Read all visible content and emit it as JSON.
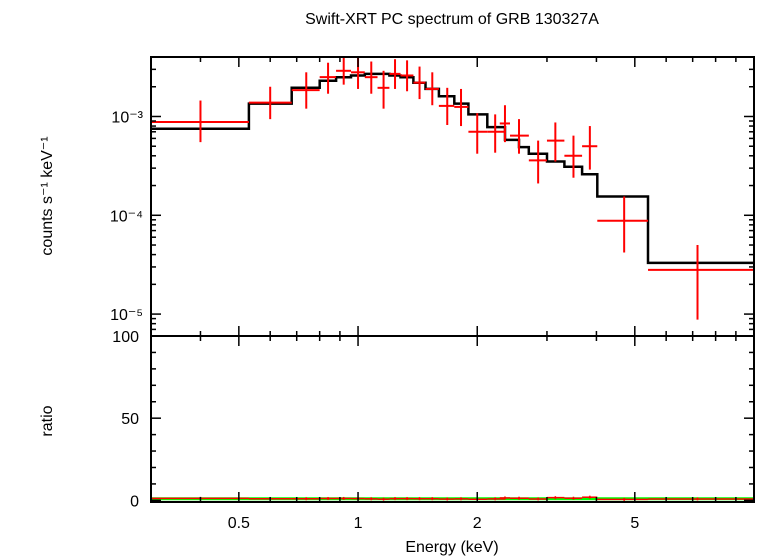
{
  "chart_data": [
    {
      "type": "scatter",
      "title": "Swift-XRT PC spectrum of GRB 130327A",
      "xlabel": "Energy (keV)",
      "ylabel": "counts s⁻¹ keV⁻¹",
      "xscale": "log",
      "yscale": "log",
      "xlim": [
        0.3,
        10
      ],
      "ylim": [
        6e-06,
        0.004
      ],
      "y_tick_labels": [
        {
          "value": 0.001,
          "label": "10⁻³"
        },
        {
          "value": 0.0001,
          "label": "10⁻⁴"
        },
        {
          "value": 1e-05,
          "label": "10⁻⁵"
        }
      ],
      "series": [
        {
          "role": "data",
          "color": "#ff0000",
          "points": [
            {
              "x": 0.4,
              "xlo": 0.3,
              "xhi": 0.53,
              "y": 0.00088,
              "ylo": 0.00055,
              "yhi": 0.00145
            },
            {
              "x": 0.6,
              "xlo": 0.53,
              "xhi": 0.68,
              "y": 0.00138,
              "ylo": 0.00094,
              "yhi": 0.002
            },
            {
              "x": 0.74,
              "xlo": 0.68,
              "xhi": 0.8,
              "y": 0.00185,
              "ylo": 0.0012,
              "yhi": 0.0028
            },
            {
              "x": 0.84,
              "xlo": 0.8,
              "xhi": 0.88,
              "y": 0.0025,
              "ylo": 0.0017,
              "yhi": 0.0035
            },
            {
              "x": 0.92,
              "xlo": 0.88,
              "xhi": 0.96,
              "y": 0.0029,
              "ylo": 0.0021,
              "yhi": 0.004
            },
            {
              "x": 1.0,
              "xlo": 0.96,
              "xhi": 1.04,
              "y": 0.0028,
              "ylo": 0.0019,
              "yhi": 0.004
            },
            {
              "x": 1.08,
              "xlo": 1.04,
              "xhi": 1.12,
              "y": 0.0025,
              "ylo": 0.0017,
              "yhi": 0.0036
            },
            {
              "x": 1.16,
              "xlo": 1.12,
              "xhi": 1.2,
              "y": 0.00195,
              "ylo": 0.0012,
              "yhi": 0.0029
            },
            {
              "x": 1.24,
              "xlo": 1.2,
              "xhi": 1.28,
              "y": 0.0027,
              "ylo": 0.0019,
              "yhi": 0.0038
            },
            {
              "x": 1.33,
              "xlo": 1.28,
              "xhi": 1.38,
              "y": 0.0026,
              "ylo": 0.0018,
              "yhi": 0.0037
            },
            {
              "x": 1.43,
              "xlo": 1.38,
              "xhi": 1.48,
              "y": 0.0022,
              "ylo": 0.0015,
              "yhi": 0.0032
            },
            {
              "x": 1.54,
              "xlo": 1.48,
              "xhi": 1.6,
              "y": 0.0019,
              "ylo": 0.0013,
              "yhi": 0.0028
            },
            {
              "x": 1.68,
              "xlo": 1.6,
              "xhi": 1.75,
              "y": 0.00128,
              "ylo": 0.00082,
              "yhi": 0.00195
            },
            {
              "x": 1.82,
              "xlo": 1.75,
              "xhi": 1.9,
              "y": 0.00125,
              "ylo": 0.0008,
              "yhi": 0.0019
            },
            {
              "x": 2.0,
              "xlo": 1.9,
              "xhi": 2.12,
              "y": 0.0007,
              "ylo": 0.00042,
              "yhi": 0.00108
            },
            {
              "x": 2.22,
              "xlo": 2.12,
              "xhi": 2.35,
              "y": 0.0007,
              "ylo": 0.00043,
              "yhi": 0.00105
            },
            {
              "x": 2.35,
              "xlo": 2.28,
              "xhi": 2.42,
              "y": 0.00085,
              "ylo": 0.00055,
              "yhi": 0.0013
            },
            {
              "x": 2.55,
              "xlo": 2.42,
              "xhi": 2.7,
              "y": 0.00064,
              "ylo": 0.00042,
              "yhi": 0.00094
            },
            {
              "x": 2.85,
              "xlo": 2.7,
              "xhi": 3.0,
              "y": 0.00036,
              "ylo": 0.00021,
              "yhi": 0.00057
            },
            {
              "x": 3.15,
              "xlo": 3.0,
              "xhi": 3.32,
              "y": 0.00057,
              "ylo": 0.00035,
              "yhi": 0.00087
            },
            {
              "x": 3.5,
              "xlo": 3.32,
              "xhi": 3.68,
              "y": 0.0004,
              "ylo": 0.00024,
              "yhi": 0.00064
            },
            {
              "x": 3.85,
              "xlo": 3.68,
              "xhi": 4.02,
              "y": 0.0005,
              "ylo": 0.00029,
              "yhi": 0.0008
            },
            {
              "x": 4.7,
              "xlo": 4.02,
              "xhi": 5.4,
              "y": 8.8e-05,
              "ylo": 4.2e-05,
              "yhi": 0.000155
            },
            {
              "x": 7.2,
              "xlo": 5.4,
              "xhi": 10.0,
              "y": 2.8e-05,
              "ylo": 8.8e-06,
              "yhi": 5e-05
            }
          ]
        },
        {
          "role": "model",
          "color": "#000000",
          "bins": [
            {
              "xlo": 0.3,
              "xhi": 0.53,
              "y": 0.00075
            },
            {
              "xlo": 0.53,
              "xhi": 0.68,
              "y": 0.00135
            },
            {
              "xlo": 0.68,
              "xhi": 0.8,
              "y": 0.00195
            },
            {
              "xlo": 0.8,
              "xhi": 0.88,
              "y": 0.0023
            },
            {
              "xlo": 0.88,
              "xhi": 0.96,
              "y": 0.0025
            },
            {
              "xlo": 0.96,
              "xhi": 1.04,
              "y": 0.0026
            },
            {
              "xlo": 1.04,
              "xhi": 1.12,
              "y": 0.0027
            },
            {
              "xlo": 1.12,
              "xhi": 1.2,
              "y": 0.0027
            },
            {
              "xlo": 1.2,
              "xhi": 1.28,
              "y": 0.0026
            },
            {
              "xlo": 1.28,
              "xhi": 1.38,
              "y": 0.0025
            },
            {
              "xlo": 1.38,
              "xhi": 1.48,
              "y": 0.0022
            },
            {
              "xlo": 1.48,
              "xhi": 1.6,
              "y": 0.0019
            },
            {
              "xlo": 1.6,
              "xhi": 1.75,
              "y": 0.0016
            },
            {
              "xlo": 1.75,
              "xhi": 1.9,
              "y": 0.00135
            },
            {
              "xlo": 1.9,
              "xhi": 2.12,
              "y": 0.00105
            },
            {
              "xlo": 2.12,
              "xhi": 2.35,
              "y": 0.00078
            },
            {
              "xlo": 2.35,
              "xhi": 2.55,
              "y": 0.00058
            },
            {
              "xlo": 2.55,
              "xhi": 2.7,
              "y": 0.00049
            },
            {
              "xlo": 2.7,
              "xhi": 3.0,
              "y": 0.00042
            },
            {
              "xlo": 3.0,
              "xhi": 3.32,
              "y": 0.00035
            },
            {
              "xlo": 3.32,
              "xhi": 3.68,
              "y": 0.00031
            },
            {
              "xlo": 3.68,
              "xhi": 4.02,
              "y": 0.00026
            },
            {
              "xlo": 4.02,
              "xhi": 5.4,
              "y": 0.000155
            },
            {
              "xlo": 5.4,
              "xhi": 10.0,
              "y": 3.3e-05
            }
          ]
        }
      ]
    },
    {
      "type": "scatter",
      "xlabel": "Energy (keV)",
      "ylabel": "ratio",
      "xscale": "log",
      "xlim": [
        0.3,
        10
      ],
      "ylim": [
        -1,
        100
      ],
      "x_ticks": [
        0.5,
        1,
        2,
        5
      ],
      "x_tick_labels": [
        "0.5",
        "1",
        "2",
        "5"
      ],
      "y_ticks": [
        0,
        50,
        100
      ],
      "y_tick_labels": [
        "0",
        "50",
        "100"
      ],
      "reference_line": {
        "y": 1,
        "color": "#00ff00"
      },
      "series": [
        {
          "role": "ratio",
          "color": "#ff0000",
          "points": [
            {
              "x": 0.4,
              "y": 1.2
            },
            {
              "x": 0.6,
              "y": 1.0
            },
            {
              "x": 0.74,
              "y": 0.95
            },
            {
              "x": 0.84,
              "y": 1.1
            },
            {
              "x": 0.92,
              "y": 1.15
            },
            {
              "x": 1.0,
              "y": 1.08
            },
            {
              "x": 1.08,
              "y": 0.93
            },
            {
              "x": 1.16,
              "y": 0.72
            },
            {
              "x": 1.24,
              "y": 1.04
            },
            {
              "x": 1.33,
              "y": 1.04
            },
            {
              "x": 1.43,
              "y": 1.0
            },
            {
              "x": 1.54,
              "y": 1.0
            },
            {
              "x": 1.68,
              "y": 0.8
            },
            {
              "x": 1.82,
              "y": 0.93
            },
            {
              "x": 2.0,
              "y": 0.67
            },
            {
              "x": 2.22,
              "y": 0.9
            },
            {
              "x": 2.35,
              "y": 1.46
            },
            {
              "x": 2.55,
              "y": 1.3
            },
            {
              "x": 2.85,
              "y": 0.86
            },
            {
              "x": 3.15,
              "y": 1.63
            },
            {
              "x": 3.5,
              "y": 1.29
            },
            {
              "x": 3.85,
              "y": 1.92
            },
            {
              "x": 4.7,
              "y": 0.57
            },
            {
              "x": 7.2,
              "y": 0.85
            }
          ]
        }
      ]
    }
  ]
}
